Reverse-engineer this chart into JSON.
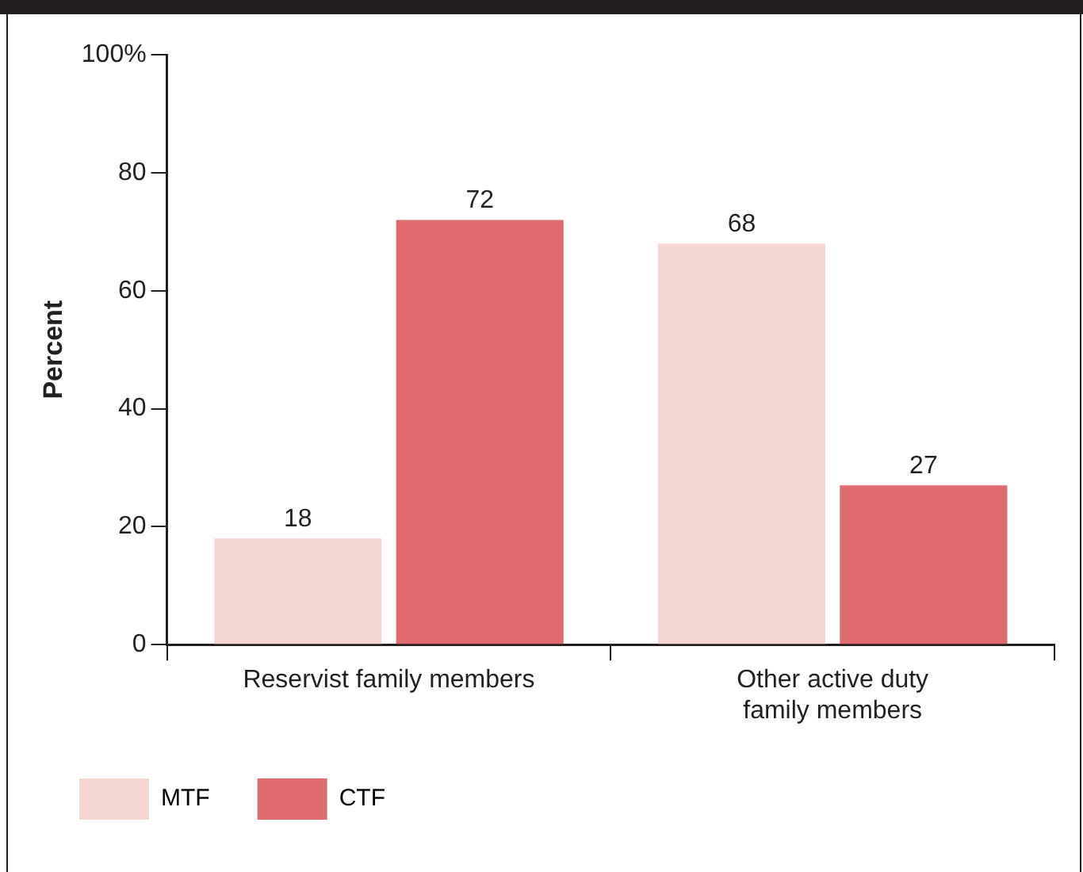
{
  "chart_data": {
    "type": "bar",
    "ylabel": "Percent",
    "categories": [
      "Reservist family members",
      "Other active duty family members"
    ],
    "series": [
      {
        "name": "MTF",
        "color": "#f6d6d1",
        "values": [
          18,
          68
        ]
      },
      {
        "name": "CTF",
        "color": "#e06b6f",
        "values": [
          72,
          27
        ]
      }
    ],
    "ylim": [
      0,
      100
    ],
    "yticks": [
      0,
      20,
      40,
      60,
      80,
      {
        "value": 100,
        "label": "100%"
      }
    ],
    "grid": false,
    "legend": "bottom left",
    "data_labels": true
  }
}
